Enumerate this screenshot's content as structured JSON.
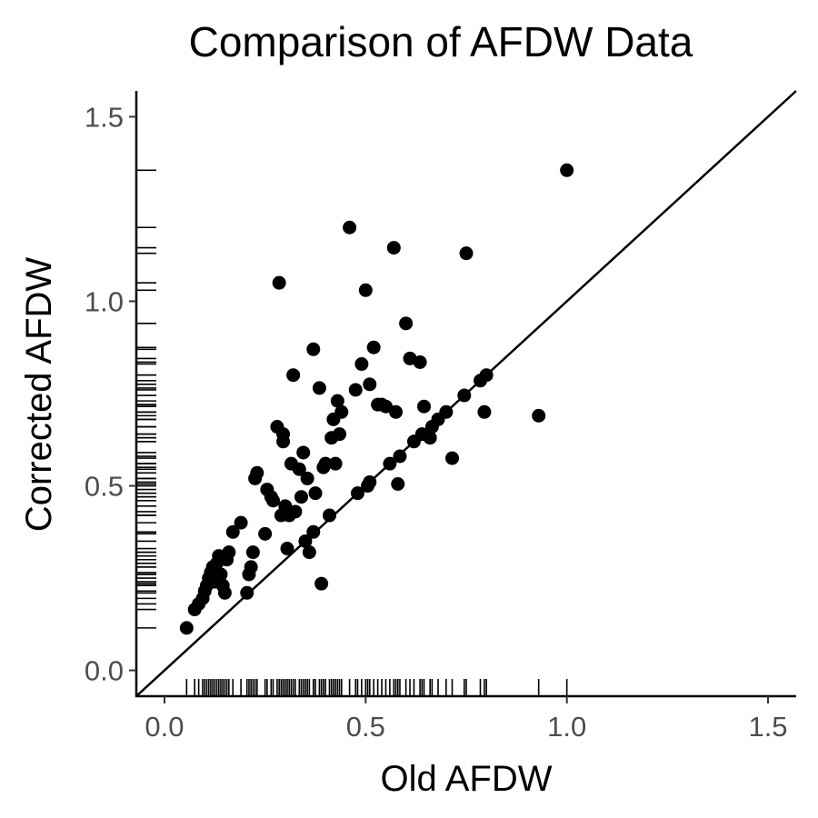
{
  "chart_data": {
    "type": "scatter",
    "title": "Comparison of AFDW Data",
    "xlabel": "Old AFDW",
    "ylabel": "Corrected AFDW",
    "xlim": [
      -0.07,
      1.57
    ],
    "ylim": [
      -0.07,
      1.57
    ],
    "xticks": [
      0.0,
      0.5,
      1.0,
      1.5
    ],
    "yticks": [
      0.0,
      0.5,
      1.0,
      1.5
    ],
    "xtick_labels": [
      "0.0",
      "0.5",
      "1.0",
      "1.5"
    ],
    "ytick_labels": [
      "0.0",
      "0.5",
      "1.0",
      "1.5"
    ],
    "reference_line": {
      "label": "",
      "slope": 1,
      "intercept": 0
    },
    "rug": true,
    "grid": false,
    "points": [
      {
        "x": 0.055,
        "y": 0.115
      },
      {
        "x": 0.075,
        "y": 0.165
      },
      {
        "x": 0.085,
        "y": 0.18
      },
      {
        "x": 0.095,
        "y": 0.195
      },
      {
        "x": 0.1,
        "y": 0.215
      },
      {
        "x": 0.105,
        "y": 0.23
      },
      {
        "x": 0.11,
        "y": 0.25
      },
      {
        "x": 0.115,
        "y": 0.265
      },
      {
        "x": 0.12,
        "y": 0.28
      },
      {
        "x": 0.125,
        "y": 0.24
      },
      {
        "x": 0.13,
        "y": 0.29
      },
      {
        "x": 0.135,
        "y": 0.31
      },
      {
        "x": 0.14,
        "y": 0.26
      },
      {
        "x": 0.145,
        "y": 0.23
      },
      {
        "x": 0.15,
        "y": 0.21
      },
      {
        "x": 0.155,
        "y": 0.3
      },
      {
        "x": 0.16,
        "y": 0.32
      },
      {
        "x": 0.17,
        "y": 0.375
      },
      {
        "x": 0.19,
        "y": 0.4
      },
      {
        "x": 0.205,
        "y": 0.21
      },
      {
        "x": 0.21,
        "y": 0.26
      },
      {
        "x": 0.215,
        "y": 0.28
      },
      {
        "x": 0.22,
        "y": 0.32
      },
      {
        "x": 0.225,
        "y": 0.52
      },
      {
        "x": 0.23,
        "y": 0.535
      },
      {
        "x": 0.25,
        "y": 0.37
      },
      {
        "x": 0.255,
        "y": 0.49
      },
      {
        "x": 0.265,
        "y": 0.47
      },
      {
        "x": 0.27,
        "y": 0.46
      },
      {
        "x": 0.28,
        "y": 0.66
      },
      {
        "x": 0.285,
        "y": 1.05
      },
      {
        "x": 0.29,
        "y": 0.42
      },
      {
        "x": 0.295,
        "y": 0.62
      },
      {
        "x": 0.295,
        "y": 0.64
      },
      {
        "x": 0.3,
        "y": 0.445
      },
      {
        "x": 0.305,
        "y": 0.33
      },
      {
        "x": 0.31,
        "y": 0.42
      },
      {
        "x": 0.315,
        "y": 0.56
      },
      {
        "x": 0.32,
        "y": 0.8
      },
      {
        "x": 0.325,
        "y": 0.43
      },
      {
        "x": 0.335,
        "y": 0.545
      },
      {
        "x": 0.34,
        "y": 0.47
      },
      {
        "x": 0.345,
        "y": 0.59
      },
      {
        "x": 0.35,
        "y": 0.35
      },
      {
        "x": 0.355,
        "y": 0.52
      },
      {
        "x": 0.36,
        "y": 0.32
      },
      {
        "x": 0.37,
        "y": 0.87
      },
      {
        "x": 0.37,
        "y": 0.375
      },
      {
        "x": 0.375,
        "y": 0.48
      },
      {
        "x": 0.385,
        "y": 0.765
      },
      {
        "x": 0.39,
        "y": 0.235
      },
      {
        "x": 0.395,
        "y": 0.55
      },
      {
        "x": 0.4,
        "y": 0.56
      },
      {
        "x": 0.41,
        "y": 0.42
      },
      {
        "x": 0.415,
        "y": 0.63
      },
      {
        "x": 0.42,
        "y": 0.68
      },
      {
        "x": 0.425,
        "y": 0.56
      },
      {
        "x": 0.43,
        "y": 0.73
      },
      {
        "x": 0.435,
        "y": 0.64
      },
      {
        "x": 0.44,
        "y": 0.7
      },
      {
        "x": 0.46,
        "y": 1.2
      },
      {
        "x": 0.475,
        "y": 0.76
      },
      {
        "x": 0.48,
        "y": 0.48
      },
      {
        "x": 0.49,
        "y": 0.83
      },
      {
        "x": 0.5,
        "y": 1.03
      },
      {
        "x": 0.505,
        "y": 0.5
      },
      {
        "x": 0.51,
        "y": 0.51
      },
      {
        "x": 0.51,
        "y": 0.775
      },
      {
        "x": 0.52,
        "y": 0.875
      },
      {
        "x": 0.53,
        "y": 0.72
      },
      {
        "x": 0.54,
        "y": 0.72
      },
      {
        "x": 0.55,
        "y": 0.715
      },
      {
        "x": 0.56,
        "y": 0.56
      },
      {
        "x": 0.57,
        "y": 1.145
      },
      {
        "x": 0.575,
        "y": 0.7
      },
      {
        "x": 0.58,
        "y": 0.505
      },
      {
        "x": 0.585,
        "y": 0.58
      },
      {
        "x": 0.6,
        "y": 0.94
      },
      {
        "x": 0.61,
        "y": 0.845
      },
      {
        "x": 0.62,
        "y": 0.62
      },
      {
        "x": 0.635,
        "y": 0.835
      },
      {
        "x": 0.64,
        "y": 0.64
      },
      {
        "x": 0.645,
        "y": 0.715
      },
      {
        "x": 0.66,
        "y": 0.63
      },
      {
        "x": 0.665,
        "y": 0.66
      },
      {
        "x": 0.68,
        "y": 0.68
      },
      {
        "x": 0.7,
        "y": 0.7
      },
      {
        "x": 0.715,
        "y": 0.575
      },
      {
        "x": 0.745,
        "y": 0.745
      },
      {
        "x": 0.75,
        "y": 1.13
      },
      {
        "x": 0.785,
        "y": 0.785
      },
      {
        "x": 0.795,
        "y": 0.7
      },
      {
        "x": 0.8,
        "y": 0.8
      },
      {
        "x": 0.93,
        "y": 0.69
      },
      {
        "x": 1.0,
        "y": 1.355
      }
    ]
  }
}
